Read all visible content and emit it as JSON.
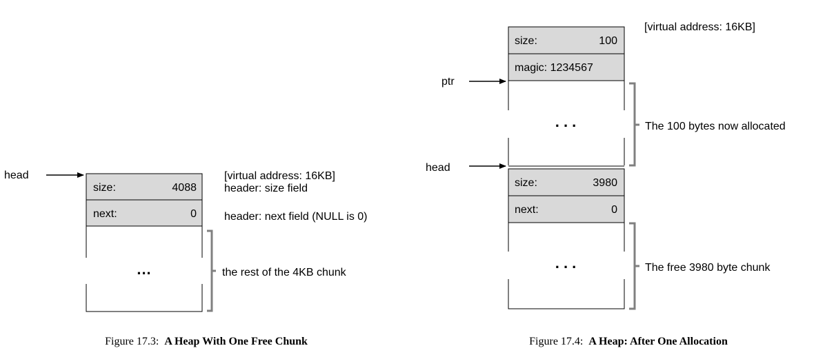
{
  "figure_17_3": {
    "pointer_head": "head",
    "size_label": "size:",
    "size_value": "4088",
    "next_label": "next:",
    "next_value": "0",
    "ellipsis": "...",
    "annot_virtual_address": "[virtual address: 16KB]",
    "annot_size_field": "header: size field",
    "annot_next_field": "header: next field (NULL is 0)",
    "annot_rest": "the rest of the 4KB chunk",
    "caption_prefix": "Figure 17.3:",
    "caption_title": "A Heap With One Free Chunk"
  },
  "figure_17_4": {
    "annot_virtual_address": "[virtual address: 16KB]",
    "size_label": "size:",
    "size_value": "100",
    "magic_label": "magic: 1234567",
    "pointer_ptr": "ptr",
    "ellipsis_allocated": ". . .",
    "annot_allocated": "The 100 bytes now allocated",
    "pointer_head": "head",
    "free_size_label": "size:",
    "free_size_value": "3980",
    "free_next_label": "next:",
    "free_next_value": "0",
    "ellipsis_free": ". . .",
    "annot_free": "The free 3980 byte chunk",
    "caption_prefix": "Figure 17.4:",
    "caption_title": "A Heap: After One Allocation"
  },
  "colors": {
    "header_fill": "#d9d9d9",
    "bracket": "#808080",
    "stroke": "#000000"
  }
}
